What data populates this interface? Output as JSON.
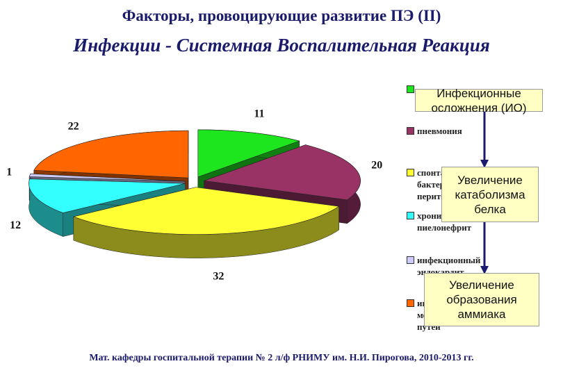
{
  "header": {
    "title": "Факторы, провоцирующие развитие ПЭ (II)",
    "subtitle": "Инфекции - Системная Воспалительная Реакция"
  },
  "chart_data": {
    "type": "pie",
    "categories": [
      null,
      "пневмония",
      "спонтанный бактериальный перитонит",
      "хронический пиелонефрит",
      "инфекционный эндокардит",
      "инфекции мочевыводящих путей"
    ],
    "values": [
      11,
      20,
      32,
      12,
      1,
      22
    ],
    "colors": [
      "#1ee61e",
      "#993366",
      "#ffff33",
      "#33ffff",
      "#ccccff",
      "#ff6600"
    ]
  },
  "flow": {
    "nodes": [
      {
        "label": "Инфекционные осложнения (ИО)"
      },
      {
        "label": "Увеличение катаболизма белка"
      },
      {
        "label": "Увеличение образования аммиака"
      }
    ]
  },
  "footer": "Мат. кафедры госпитальной терапии № 2 л/ф РНИМУ им. Н.И. Пирогова, 2010-2013 гг."
}
